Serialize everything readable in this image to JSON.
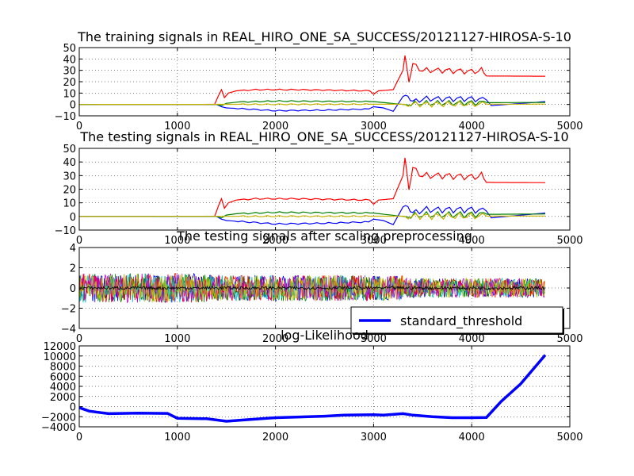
{
  "chart_data": [
    {
      "type": "line",
      "title": "The training signals in REAL_HIRO_ONE_SA_SUCCESS/20121127-HIROSA-S-10",
      "xlim": [
        0,
        5000
      ],
      "ylim": [
        -10,
        50
      ],
      "xticks": [
        "0",
        "1000",
        "2000",
        "3000",
        "4000",
        "5000"
      ],
      "yticks": [
        "−10",
        "0",
        "10",
        "20",
        "30",
        "40",
        "50"
      ],
      "grid": true,
      "series": [
        {
          "color": "#ff0000",
          "points": [
            [
              0,
              0
            ],
            [
              1380,
              0
            ],
            [
              1420,
              8
            ],
            [
              1450,
              13
            ],
            [
              1480,
              6
            ],
            [
              1520,
              10
            ],
            [
              1600,
              12
            ],
            [
              1800,
              13
            ],
            [
              2200,
              13
            ],
            [
              2600,
              12.5
            ],
            [
              2960,
              12
            ],
            [
              3000,
              9
            ],
            [
              3050,
              12
            ],
            [
              3200,
              13
            ],
            [
              3300,
              30
            ],
            [
              3320,
              43
            ],
            [
              3360,
              22
            ],
            [
              3400,
              35
            ],
            [
              3500,
              30
            ],
            [
              3700,
              30
            ],
            [
              4000,
              29
            ],
            [
              4100,
              30
            ],
            [
              4150,
              25
            ],
            [
              4750,
              24.8
            ]
          ]
        },
        {
          "color": "#0000ff",
          "points": [
            [
              0,
              0
            ],
            [
              1400,
              0
            ],
            [
              1450,
              -2
            ],
            [
              1500,
              -3
            ],
            [
              1700,
              -4
            ],
            [
              2000,
              -5.5
            ],
            [
              2500,
              -5
            ],
            [
              2950,
              -4
            ],
            [
              3000,
              -2
            ],
            [
              3100,
              -3
            ],
            [
              3200,
              -6
            ],
            [
              3300,
              7
            ],
            [
              3350,
              9
            ],
            [
              3400,
              2
            ],
            [
              3500,
              5
            ],
            [
              3700,
              5
            ],
            [
              4000,
              5
            ],
            [
              4150,
              4
            ],
            [
              4200,
              -1
            ],
            [
              4750,
              2.5
            ]
          ]
        },
        {
          "color": "#008000",
          "points": [
            [
              0,
              0
            ],
            [
              1400,
              0
            ],
            [
              1450,
              -1
            ],
            [
              1500,
              1
            ],
            [
              1600,
              2
            ],
            [
              2000,
              3
            ],
            [
              3000,
              2.5
            ],
            [
              3300,
              0
            ],
            [
              3500,
              1
            ],
            [
              4000,
              1.5
            ],
            [
              4750,
              1.8
            ]
          ]
        },
        {
          "color": "#c8b400",
          "points": [
            [
              0,
              0
            ],
            [
              4750,
              0.3
            ]
          ]
        }
      ]
    },
    {
      "type": "line",
      "title": "The testing  signals in REAL_HIRO_ONE_SA_SUCCESS/20121127-HIROSA-S-10",
      "xlim": [
        0,
        5000
      ],
      "ylim": [
        -10,
        50
      ],
      "xticks": [
        "0",
        "1000",
        "2000",
        "3000",
        "4000",
        "5000"
      ],
      "yticks": [
        "−10",
        "0",
        "10",
        "20",
        "30",
        "40",
        "50"
      ],
      "grid": true
    },
    {
      "type": "line",
      "title": "The testing  signals after scaling preprocessing",
      "xlim": [
        0,
        5000
      ],
      "ylim": [
        -5,
        5
      ],
      "xticks": [
        "0",
        "1000",
        "2000",
        "3000",
        "4000",
        "5000"
      ],
      "yticks": [
        "−4",
        "−2",
        "0",
        "2",
        "4"
      ],
      "grid": true,
      "series_colors": [
        "#0000ff",
        "#008000",
        "#ff0000",
        "#00bfbf",
        "#bf00bf",
        "#bfbf00",
        "#000000"
      ],
      "legend": {
        "label": "standard_threshold",
        "color": "#0000ff",
        "position": "lower right"
      }
    },
    {
      "type": "line",
      "title": "log-Likelihood",
      "xlim": [
        0,
        5000
      ],
      "ylim": [
        -4000,
        12000
      ],
      "xticks": [
        "0",
        "1000",
        "2000",
        "3000",
        "4000",
        "5000"
      ],
      "yticks": [
        "−4000",
        "−2000",
        "0",
        "2000",
        "4000",
        "6000",
        "8000",
        "10000",
        "12000"
      ],
      "grid": true,
      "series": [
        {
          "name": "standard_threshold",
          "color": "#0000ff",
          "points": [
            [
              0,
              -200
            ],
            [
              100,
              -900
            ],
            [
              300,
              -1400
            ],
            [
              600,
              -1300
            ],
            [
              900,
              -1350
            ],
            [
              1000,
              -2300
            ],
            [
              1300,
              -2400
            ],
            [
              1500,
              -2900
            ],
            [
              1700,
              -2600
            ],
            [
              2000,
              -2200
            ],
            [
              2500,
              -1900
            ],
            [
              2700,
              -1700
            ],
            [
              3000,
              -1600
            ],
            [
              3100,
              -1700
            ],
            [
              3300,
              -1400
            ],
            [
              3400,
              -1700
            ],
            [
              3600,
              -2000
            ],
            [
              3800,
              -2200
            ],
            [
              4000,
              -2200
            ],
            [
              4150,
              -2150
            ],
            [
              4300,
              1000
            ],
            [
              4500,
              4500
            ],
            [
              4750,
              10200
            ]
          ]
        }
      ]
    }
  ]
}
